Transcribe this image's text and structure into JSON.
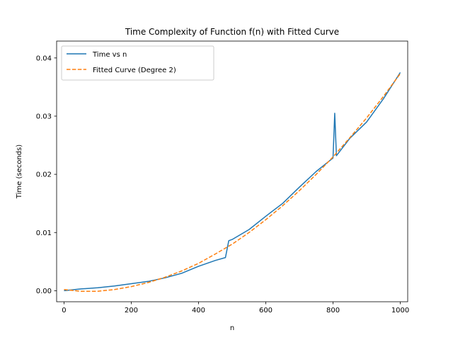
{
  "chart_data": {
    "type": "line",
    "title": "Time Complexity of Function f(n) with Fitted Curve",
    "xlabel": "n",
    "ylabel": "Time (seconds)",
    "xlim": [
      -22,
      1022
    ],
    "ylim": [
      -0.0019,
      0.0429
    ],
    "x_ticks": [
      0,
      200,
      400,
      600,
      800,
      1000
    ],
    "x_tick_labels": [
      "0",
      "200",
      "400",
      "600",
      "800",
      "1000"
    ],
    "y_ticks": [
      0.0,
      0.01,
      0.02,
      0.03,
      0.04
    ],
    "y_tick_labels": [
      "0.00",
      "0.01",
      "0.02",
      "0.03",
      "0.04"
    ],
    "grid": false,
    "legend_position": "top-left",
    "series": [
      {
        "name": "Time vs n",
        "style": "solid",
        "color": "#1f77b4",
        "x": [
          0,
          50,
          100,
          150,
          200,
          250,
          300,
          350,
          400,
          450,
          480,
          490,
          500,
          550,
          600,
          650,
          700,
          750,
          800,
          805,
          810,
          850,
          900,
          950,
          1000
        ],
        "values": [
          0.0,
          0.0003,
          0.0005,
          0.0008,
          0.0012,
          0.0016,
          0.0022,
          0.003,
          0.0042,
          0.0052,
          0.0057,
          0.0086,
          0.0088,
          0.0105,
          0.0128,
          0.015,
          0.0178,
          0.0205,
          0.0228,
          0.0305,
          0.0232,
          0.0262,
          0.029,
          0.033,
          0.0375
        ]
      },
      {
        "name": "Fitted Curve (Degree 2)",
        "style": "dashed",
        "color": "#ff7f0e",
        "x": [
          0,
          50,
          100,
          150,
          200,
          250,
          300,
          350,
          400,
          450,
          500,
          550,
          600,
          650,
          700,
          750,
          800,
          850,
          900,
          950,
          1000
        ],
        "values": [
          0.0002,
          -0.0001,
          -0.0001,
          0.0002,
          0.0007,
          0.0014,
          0.0023,
          0.0034,
          0.0047,
          0.0063,
          0.008,
          0.01,
          0.0122,
          0.0146,
          0.0172,
          0.02,
          0.023,
          0.0263,
          0.0297,
          0.0334,
          0.0373
        ]
      }
    ]
  }
}
